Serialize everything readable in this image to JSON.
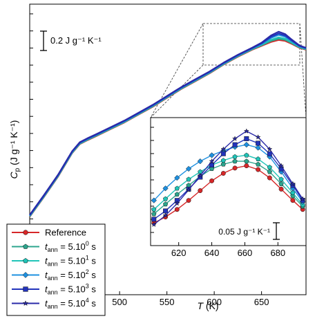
{
  "chart_data": {
    "type": "line",
    "ylabel": "C",
    "ylabel_sub": "p",
    "ylabel_unit": " (J g⁻¹ K⁻¹)",
    "xlabel_var": "T",
    "xlabel_unit": " (K)",
    "x_ticks": [
      "500",
      "550",
      "600",
      "650"
    ],
    "xlim": [
      405,
      697
    ],
    "y_scalebar": "0.2 J g⁻¹ K⁻¹",
    "colors": {
      "reference": "#d62728",
      "t0": "#2ca58d",
      "t1": "#20c4b8",
      "t2": "#1e90e0",
      "t3": "#2233bb",
      "t4": "#2a2aa8"
    },
    "main_curve": {
      "x": [
        405,
        420,
        435,
        450,
        458,
        466,
        475,
        490,
        505,
        520,
        535,
        550,
        565,
        580,
        595,
        610,
        625,
        640,
        650,
        660,
        668,
        675,
        682,
        690,
        697
      ],
      "y": [
        0.0,
        0.2,
        0.41,
        0.65,
        0.74,
        0.78,
        0.82,
        0.89,
        0.96,
        1.04,
        1.12,
        1.21,
        1.3,
        1.38,
        1.46,
        1.55,
        1.63,
        1.7,
        1.74,
        1.78,
        1.8,
        1.79,
        1.76,
        1.72,
        1.7
      ]
    },
    "series": [
      {
        "name": "Reference",
        "label_pre": "",
        "label_sub": "",
        "label_base": "Reference",
        "label_sup": "",
        "label_post": "",
        "marker": "circle",
        "color": "#d62728",
        "inset_x": [
          605,
          612,
          619,
          626,
          633,
          640,
          647,
          654,
          661,
          668,
          675,
          682,
          689,
          695
        ],
        "inset_y": [
          0.0,
          0.008,
          0.018,
          0.03,
          0.043,
          0.056,
          0.066,
          0.073,
          0.076,
          0.071,
          0.06,
          0.045,
          0.03,
          0.018
        ]
      },
      {
        "name": "tann = 5.10^0 s",
        "label_pre": "t",
        "label_sub": "ann",
        "label_base": " = 5.10",
        "label_sup": "0",
        "label_post": " s",
        "marker": "pentagon",
        "color": "#2ca58d",
        "inset_x": [
          605,
          612,
          619,
          626,
          633,
          640,
          647,
          654,
          661,
          668,
          675,
          682,
          689,
          695
        ],
        "inset_y": [
          0.012,
          0.025,
          0.038,
          0.05,
          0.062,
          0.072,
          0.078,
          0.082,
          0.082,
          0.078,
          0.068,
          0.052,
          0.036,
          0.022
        ]
      },
      {
        "name": "tann = 5.10^1 s",
        "label_pre": "t",
        "label_sub": "ann",
        "label_base": " = 5.10",
        "label_sup": "1",
        "label_post": " s",
        "marker": "pentagon",
        "color": "#20c4b8",
        "inset_x": [
          605,
          612,
          619,
          626,
          633,
          640,
          647,
          654,
          661,
          668,
          675,
          682,
          689,
          695
        ],
        "inset_y": [
          0.018,
          0.032,
          0.046,
          0.058,
          0.068,
          0.077,
          0.083,
          0.088,
          0.09,
          0.085,
          0.074,
          0.058,
          0.04,
          0.024
        ]
      },
      {
        "name": "tann = 5.10^2 s",
        "label_pre": "t",
        "label_sub": "ann",
        "label_base": " = 5.10",
        "label_sup": "2",
        "label_post": " s",
        "marker": "diamond",
        "color": "#1e90e0",
        "inset_x": [
          605,
          612,
          619,
          626,
          633,
          640,
          647,
          654,
          661,
          668,
          675,
          682,
          689,
          695
        ],
        "inset_y": [
          0.03,
          0.046,
          0.06,
          0.072,
          0.082,
          0.09,
          0.096,
          0.101,
          0.104,
          0.1,
          0.088,
          0.068,
          0.046,
          0.028
        ]
      },
      {
        "name": "tann = 5.10^3 s",
        "label_pre": "t",
        "label_sub": "ann",
        "label_base": " = 5.10",
        "label_sup": "3",
        "label_post": " s",
        "marker": "square",
        "color": "#2233bb",
        "inset_x": [
          605,
          612,
          619,
          626,
          633,
          640,
          647,
          654,
          661,
          668,
          675,
          682,
          689,
          695
        ],
        "inset_y": [
          0.005,
          0.016,
          0.03,
          0.045,
          0.061,
          0.077,
          0.092,
          0.104,
          0.112,
          0.106,
          0.092,
          0.072,
          0.05,
          0.03
        ]
      },
      {
        "name": "tann = 5.10^4 s",
        "label_pre": "t",
        "label_sub": "ann",
        "label_base": " = 5.10",
        "label_sup": "4",
        "label_post": " s",
        "marker": "star",
        "color": "#2a2aa8",
        "inset_x": [
          605,
          612,
          619,
          626,
          633,
          640,
          647,
          654,
          661,
          668,
          675,
          682,
          689,
          695
        ],
        "inset_y": [
          -0.002,
          0.01,
          0.026,
          0.044,
          0.063,
          0.082,
          0.098,
          0.112,
          0.122,
          0.114,
          0.098,
          0.076,
          0.052,
          0.032
        ]
      }
    ],
    "inset": {
      "x_ticks": [
        "620",
        "640",
        "660",
        "680"
      ],
      "xlim": [
        603,
        697
      ],
      "ylim": [
        -0.03,
        0.14
      ],
      "y_scalebar": "0.05 J g⁻¹ K⁻¹"
    }
  }
}
